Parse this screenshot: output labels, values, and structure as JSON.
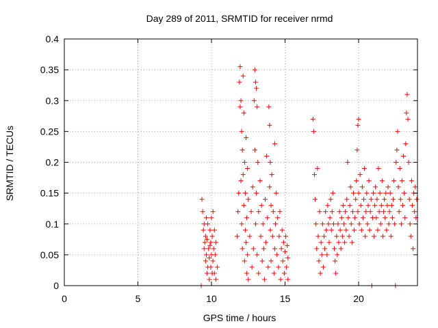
{
  "chart_data": {
    "type": "scatter",
    "title": "Day 289 of 2011, SRMTID for receiver nrmd",
    "xlabel": "GPS time / hours",
    "ylabel": "SRMTID / TECUs",
    "xlim": [
      0,
      24
    ],
    "ylim": [
      0,
      0.4
    ],
    "x_ticks": [
      0,
      5,
      10,
      15,
      20
    ],
    "x_tick_labels": [
      "0",
      "5",
      "10",
      "15",
      "20"
    ],
    "y_ticks": [
      0,
      0.05,
      0.1,
      0.15,
      0.2,
      0.25,
      0.3,
      0.35,
      0.4
    ],
    "y_tick_labels": [
      "0",
      "0.05",
      "0.1",
      "0.15",
      "0.2",
      "0.25",
      "0.3",
      "0.35",
      "0.4"
    ],
    "grid": true,
    "marker": "plus",
    "series": [
      {
        "color": "#ff0000",
        "points": [
          [
            9.3,
            0.0
          ],
          [
            9.35,
            0.14
          ],
          [
            9.4,
            0.12
          ],
          [
            9.45,
            0.09
          ],
          [
            9.5,
            0.06
          ],
          [
            9.5,
            0.1
          ],
          [
            9.55,
            0.07
          ],
          [
            9.6,
            0.04
          ],
          [
            9.6,
            0.08
          ],
          [
            9.65,
            0.05
          ],
          [
            9.7,
            0.02
          ],
          [
            9.7,
            0.075
          ],
          [
            9.75,
            0.03
          ],
          [
            9.8,
            0.06
          ],
          [
            9.85,
            0.01
          ],
          [
            9.85,
            0.045
          ],
          [
            9.9,
            0.09
          ],
          [
            9.95,
            0.03
          ],
          [
            9.95,
            0.07
          ],
          [
            10.0,
            0.05
          ],
          [
            10.0,
            0.11
          ],
          [
            10.05,
            0.08
          ],
          [
            10.1,
            0.04
          ],
          [
            10.1,
            0.12
          ],
          [
            10.15,
            0.06
          ],
          [
            10.2,
            0.02
          ],
          [
            10.2,
            0.09
          ],
          [
            10.25,
            0.05
          ],
          [
            10.3,
            0.01
          ],
          [
            10.3,
            0.07
          ],
          [
            10.4,
            0.03
          ],
          [
            9.65,
            0.11
          ],
          [
            9.75,
            0.1
          ],
          [
            9.9,
            0.065
          ],
          [
            10.05,
            0.02
          ],
          [
            11.75,
            0.08
          ],
          [
            11.8,
            0.12
          ],
          [
            11.85,
            0.15
          ],
          [
            11.9,
            0.33
          ],
          [
            11.95,
            0.355
          ],
          [
            11.95,
            0.29
          ],
          [
            12.0,
            0.3
          ],
          [
            12.0,
            0.17
          ],
          [
            12.05,
            0.25
          ],
          [
            12.05,
            0.1
          ],
          [
            12.1,
            0.22
          ],
          [
            12.1,
            0.06
          ],
          [
            12.15,
            0.34
          ],
          [
            12.15,
            0.18
          ],
          [
            12.2,
            0.28
          ],
          [
            12.2,
            0.13
          ],
          [
            12.25,
            0.2
          ],
          [
            12.25,
            0.04
          ],
          [
            12.3,
            0.15
          ],
          [
            12.3,
            0.09
          ],
          [
            12.35,
            0.24
          ],
          [
            12.35,
            0.07
          ],
          [
            12.4,
            0.11
          ],
          [
            12.4,
            0.02
          ],
          [
            12.45,
            0.19
          ],
          [
            12.45,
            0.05
          ],
          [
            12.5,
            0.14
          ],
          [
            12.5,
            0.01
          ],
          [
            12.6,
            0.08
          ],
          [
            12.7,
            0.12
          ],
          [
            12.75,
            0.03
          ],
          [
            12.8,
            0.16
          ],
          [
            12.85,
            0.06
          ],
          [
            12.9,
            0.3
          ],
          [
            12.95,
            0.35
          ],
          [
            12.95,
            0.22
          ],
          [
            13.0,
            0.33
          ],
          [
            13.0,
            0.1
          ],
          [
            13.05,
            0.32
          ],
          [
            13.05,
            0.15
          ],
          [
            13.1,
            0.29
          ],
          [
            13.1,
            0.05
          ],
          [
            13.15,
            0.2
          ],
          [
            13.2,
            0.12
          ],
          [
            13.2,
            0.02
          ],
          [
            13.3,
            0.17
          ],
          [
            13.35,
            0.08
          ],
          [
            13.4,
            0.13
          ],
          [
            13.45,
            0.04
          ],
          [
            13.5,
            0.1
          ],
          [
            13.55,
            0.06
          ],
          [
            13.6,
            0.01
          ],
          [
            13.65,
            0.14
          ],
          [
            13.7,
            0.07
          ],
          [
            13.75,
            0.21
          ],
          [
            13.8,
            0.11
          ],
          [
            13.85,
            0.03
          ],
          [
            13.9,
            0.29
          ],
          [
            13.95,
            0.26
          ],
          [
            13.95,
            0.16
          ],
          [
            14.0,
            0.2
          ],
          [
            14.0,
            0.09
          ],
          [
            14.05,
            0.13
          ],
          [
            14.05,
            0.04
          ],
          [
            14.1,
            0.18
          ],
          [
            14.15,
            0.08
          ],
          [
            14.2,
            0.12
          ],
          [
            14.25,
            0.02
          ],
          [
            14.3,
            0.23
          ],
          [
            14.3,
            0.06
          ],
          [
            14.35,
            0.1
          ],
          [
            14.4,
            0.15
          ],
          [
            14.45,
            0.05
          ],
          [
            14.5,
            0.11
          ],
          [
            14.55,
            0.03
          ],
          [
            14.6,
            0.08
          ],
          [
            14.65,
            0.12
          ],
          [
            14.7,
            0.01
          ],
          [
            14.75,
            0.06
          ],
          [
            14.8,
            0.09
          ],
          [
            14.85,
            0.04
          ],
          [
            14.9,
            0.07
          ],
          [
            14.95,
            0.02
          ],
          [
            15.0,
            0.055
          ],
          [
            15.05,
            0.08
          ],
          [
            15.1,
            0.03
          ],
          [
            15.15,
            0.065
          ],
          [
            15.2,
            0.01
          ],
          [
            15.2,
            0.045
          ],
          [
            16.9,
            0.27
          ],
          [
            16.95,
            0.25
          ],
          [
            17.0,
            0.18
          ],
          [
            17.05,
            0.14
          ],
          [
            17.1,
            0.1
          ],
          [
            17.15,
            0.06
          ],
          [
            17.2,
            0.19
          ],
          [
            17.25,
            0.08
          ],
          [
            17.3,
            0.04
          ],
          [
            17.35,
            0.12
          ],
          [
            17.4,
            0.02
          ],
          [
            17.45,
            0.07
          ],
          [
            17.5,
            0.05
          ],
          [
            17.55,
            0.1
          ],
          [
            17.6,
            0.03
          ],
          [
            17.65,
            0.08
          ],
          [
            17.7,
            0.06
          ],
          [
            17.75,
            0.12
          ],
          [
            17.8,
            0.09
          ],
          [
            17.85,
            0.05
          ],
          [
            17.9,
            0.13
          ],
          [
            17.95,
            0.1
          ],
          [
            18.0,
            0.07
          ],
          [
            18.05,
            0.11
          ],
          [
            18.1,
            0.14
          ],
          [
            18.15,
            0.09
          ],
          [
            18.2,
            0.12
          ],
          [
            18.25,
            0.15
          ],
          [
            18.3,
            0.1
          ],
          [
            18.35,
            0.06
          ],
          [
            18.4,
            0.04
          ],
          [
            18.45,
            0.02
          ],
          [
            18.5,
            0.08
          ],
          [
            18.55,
            0.05
          ],
          [
            18.6,
            0.1
          ],
          [
            18.65,
            0.07
          ],
          [
            18.7,
            0.12
          ],
          [
            18.75,
            0.09
          ],
          [
            18.8,
            0.06
          ],
          [
            18.85,
            0.11
          ],
          [
            18.9,
            0.08
          ],
          [
            18.95,
            0.13
          ],
          [
            19.0,
            0.1
          ],
          [
            19.05,
            0.07
          ],
          [
            19.1,
            0.12
          ],
          [
            19.15,
            0.09
          ],
          [
            19.2,
            0.14
          ],
          [
            19.25,
            0.2
          ],
          [
            19.3,
            0.11
          ],
          [
            19.35,
            0.08
          ],
          [
            19.4,
            0.13
          ],
          [
            19.45,
            0.16
          ],
          [
            19.5,
            0.1
          ],
          [
            19.55,
            0.07
          ],
          [
            19.6,
            0.12
          ],
          [
            19.65,
            0.15
          ],
          [
            19.7,
            0.09
          ],
          [
            19.75,
            0.11
          ],
          [
            19.8,
            0.14
          ],
          [
            19.85,
            0.17
          ],
          [
            19.9,
            0.22
          ],
          [
            19.95,
            0.26
          ],
          [
            19.95,
            0.12
          ],
          [
            20.0,
            0.27
          ],
          [
            20.0,
            0.15
          ],
          [
            20.05,
            0.1
          ],
          [
            20.1,
            0.18
          ],
          [
            20.15,
            0.13
          ],
          [
            20.2,
            0.09
          ],
          [
            20.25,
            0.16
          ],
          [
            20.3,
            0.11
          ],
          [
            20.35,
            0.14
          ],
          [
            20.4,
            0.19
          ],
          [
            20.45,
            0.08
          ],
          [
            20.5,
            0.12
          ],
          [
            20.55,
            0.15
          ],
          [
            20.6,
            0.1
          ],
          [
            20.65,
            0.13
          ],
          [
            20.7,
            0.17
          ],
          [
            20.75,
            0.09
          ],
          [
            20.8,
            0.12
          ],
          [
            20.85,
            0.14
          ],
          [
            20.9,
            0.0
          ],
          [
            20.95,
            0.11
          ],
          [
            21.0,
            0.15
          ],
          [
            21.05,
            0.08
          ],
          [
            21.1,
            0.13
          ],
          [
            21.15,
            0.16
          ],
          [
            21.2,
            0.11
          ],
          [
            21.25,
            0.14
          ],
          [
            21.3,
            0.09
          ],
          [
            21.35,
            0.19
          ],
          [
            21.4,
            0.12
          ],
          [
            21.45,
            0.15
          ],
          [
            21.5,
            0.1
          ],
          [
            21.55,
            0.13
          ],
          [
            21.6,
            0.17
          ],
          [
            21.65,
            0.08
          ],
          [
            21.7,
            0.12
          ],
          [
            21.75,
            0.14
          ],
          [
            21.8,
            0.11
          ],
          [
            21.85,
            0.15
          ],
          [
            21.9,
            0.09
          ],
          [
            21.95,
            0.13
          ],
          [
            22.0,
            0.16
          ],
          [
            22.05,
            0.1
          ],
          [
            22.1,
            0.12
          ],
          [
            22.15,
            0.15
          ],
          [
            22.2,
            0.08
          ],
          [
            22.25,
            0.13
          ],
          [
            22.3,
            0.11
          ],
          [
            22.35,
            0.14
          ],
          [
            22.4,
            0.17
          ],
          [
            22.45,
            0.1
          ],
          [
            22.5,
            0.0
          ],
          [
            22.55,
            0.2
          ],
          [
            22.6,
            0.22
          ],
          [
            22.65,
            0.25
          ],
          [
            22.7,
            0.16
          ],
          [
            22.75,
            0.12
          ],
          [
            22.8,
            0.19
          ],
          [
            22.85,
            0.14
          ],
          [
            22.9,
            0.1
          ],
          [
            22.95,
            0.17
          ],
          [
            23.0,
            0.13
          ],
          [
            23.05,
            0.21
          ],
          [
            23.1,
            0.15
          ],
          [
            23.15,
            0.11
          ],
          [
            23.2,
            0.23
          ],
          [
            23.25,
            0.28
          ],
          [
            23.3,
            0.31
          ],
          [
            23.35,
            0.27
          ],
          [
            23.4,
            0.2
          ],
          [
            23.45,
            0.14
          ],
          [
            23.5,
            0.1
          ],
          [
            23.55,
            0.08
          ],
          [
            23.6,
            0.17
          ],
          [
            23.65,
            0.13
          ],
          [
            23.7,
            0.06
          ],
          [
            23.75,
            0.15
          ],
          [
            23.8,
            0.12
          ],
          [
            23.85,
            0.16
          ],
          [
            23.9,
            0.11
          ],
          [
            23.95,
            0.14
          ]
        ]
      }
    ]
  }
}
